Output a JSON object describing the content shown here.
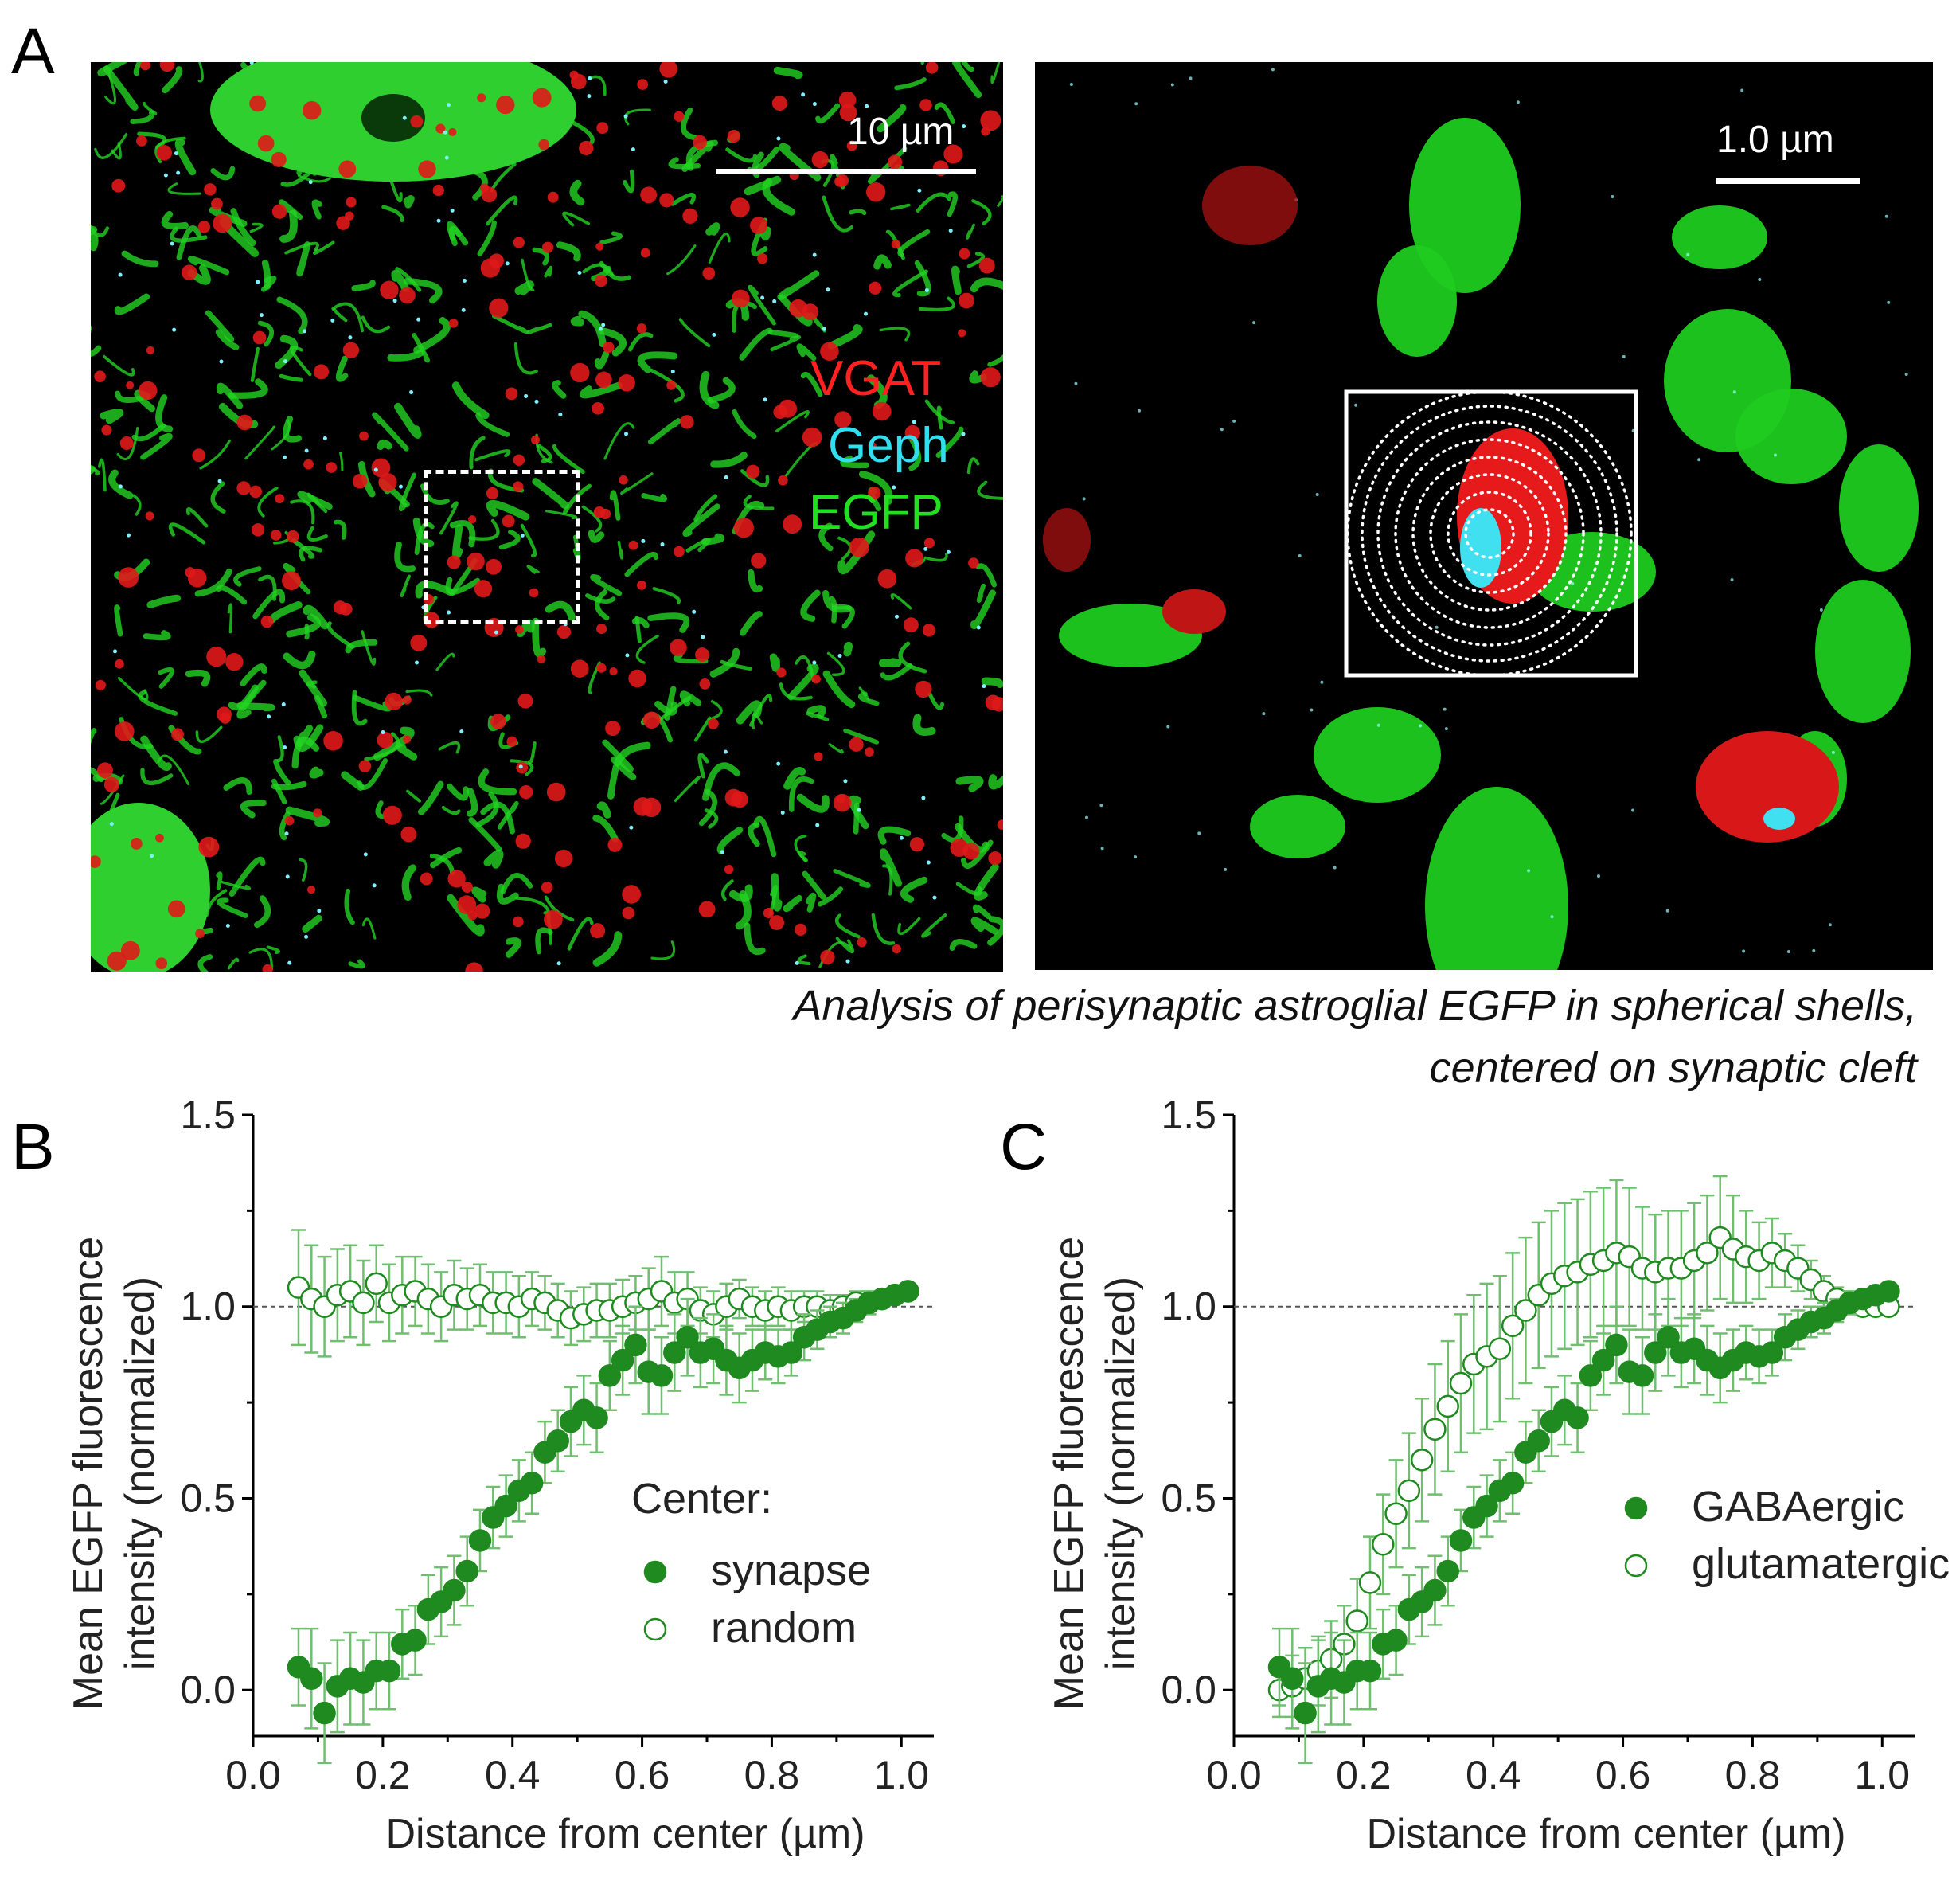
{
  "panel_a": {
    "letter": "A",
    "left_image": {
      "scale_label": "10 µm",
      "channels": [
        {
          "name": "VGAT",
          "color": "#ff2020"
        },
        {
          "name": "Geph",
          "color": "#30e0f0"
        },
        {
          "name": "EGFP",
          "color": "#20e020"
        }
      ]
    },
    "right_image": {
      "scale_label": "1.0 µm"
    },
    "caption_line1": "Analysis of perisynaptic astroglial EGFP in spherical shells,",
    "caption_line2": "centered on synaptic cleft"
  },
  "panel_b": {
    "letter": "B"
  },
  "panel_c": {
    "letter": "C"
  },
  "colors": {
    "series": "#1f8a1f",
    "error": "#6fbf6f",
    "ref_line": "#555555"
  },
  "chart_data": [
    {
      "type": "scatter",
      "panel": "B",
      "xlabel": "Distance from center (µm)",
      "ylabel": "Mean EGFP fluorescence intensity (normalized)",
      "ylabel_line1": "Mean EGFP fluorescence",
      "ylabel_line2": "intensity (normalized)",
      "xlim": [
        0.0,
        1.05
      ],
      "ylim": [
        -0.12,
        1.5
      ],
      "xticks": [
        "0.0",
        "0.2",
        "0.4",
        "0.6",
        "0.8",
        "1.0"
      ],
      "yticks": [
        "0.0",
        "0.5",
        "1.0",
        "1.5"
      ],
      "reference_line": 1.0,
      "legend_title": "Center:",
      "legend_position": "lower-right",
      "x": [
        0.07,
        0.09,
        0.11,
        0.13,
        0.15,
        0.17,
        0.19,
        0.21,
        0.23,
        0.25,
        0.27,
        0.29,
        0.31,
        0.33,
        0.35,
        0.37,
        0.39,
        0.41,
        0.43,
        0.45,
        0.47,
        0.49,
        0.51,
        0.53,
        0.55,
        0.57,
        0.59,
        0.61,
        0.63,
        0.65,
        0.67,
        0.69,
        0.71,
        0.73,
        0.75,
        0.77,
        0.79,
        0.81,
        0.83,
        0.85,
        0.87,
        0.89,
        0.91,
        0.93,
        0.95,
        0.97,
        0.99,
        1.01
      ],
      "series": [
        {
          "name": "synapse",
          "filled": true,
          "values": [
            0.06,
            0.03,
            -0.06,
            0.01,
            0.03,
            0.02,
            0.05,
            0.05,
            0.12,
            0.13,
            0.21,
            0.23,
            0.26,
            0.31,
            0.39,
            0.45,
            0.48,
            0.52,
            0.54,
            0.62,
            0.65,
            0.7,
            0.73,
            0.71,
            0.82,
            0.86,
            0.9,
            0.83,
            0.82,
            0.88,
            0.92,
            0.88,
            0.89,
            0.86,
            0.84,
            0.86,
            0.88,
            0.87,
            0.88,
            0.92,
            0.94,
            0.96,
            0.97,
            0.99,
            1.01,
            1.02,
            1.03,
            1.04
          ],
          "errors": [
            0.1,
            0.13,
            0.13,
            0.12,
            0.12,
            0.11,
            0.1,
            0.1,
            0.09,
            0.09,
            0.09,
            0.09,
            0.09,
            0.09,
            0.08,
            0.08,
            0.08,
            0.08,
            0.08,
            0.08,
            0.08,
            0.09,
            0.09,
            0.09,
            0.09,
            0.09,
            0.1,
            0.11,
            0.1,
            0.1,
            0.1,
            0.09,
            0.09,
            0.09,
            0.09,
            0.08,
            0.07,
            0.07,
            0.06,
            0.06,
            0.05,
            0.04,
            0.04,
            0.03,
            0.03,
            0.02,
            0.02,
            0.01
          ]
        },
        {
          "name": "random",
          "filled": false,
          "values": [
            1.05,
            1.02,
            1.0,
            1.03,
            1.04,
            1.01,
            1.06,
            1.01,
            1.03,
            1.04,
            1.02,
            1.0,
            1.03,
            1.02,
            1.03,
            1.01,
            1.01,
            1.0,
            1.02,
            1.01,
            0.99,
            0.97,
            0.98,
            0.99,
            0.99,
            1.0,
            1.01,
            1.02,
            1.04,
            1.01,
            1.02,
            0.99,
            0.98,
            1.0,
            1.02,
            1.0,
            0.99,
            1.0,
            0.99,
            1.0,
            1.0,
            0.99,
            1.0,
            1.01,
            1.01,
            1.02,
            1.03,
            1.04
          ],
          "errors": [
            0.15,
            0.14,
            0.13,
            0.12,
            0.12,
            0.11,
            0.1,
            0.1,
            0.1,
            0.09,
            0.09,
            0.09,
            0.09,
            0.08,
            0.08,
            0.08,
            0.08,
            0.08,
            0.07,
            0.07,
            0.07,
            0.07,
            0.07,
            0.07,
            0.07,
            0.07,
            0.07,
            0.08,
            0.09,
            0.08,
            0.07,
            0.06,
            0.06,
            0.06,
            0.05,
            0.05,
            0.05,
            0.05,
            0.05,
            0.04,
            0.04,
            0.04,
            0.03,
            0.03,
            0.03,
            0.02,
            0.02,
            0.01
          ]
        }
      ]
    },
    {
      "type": "scatter",
      "panel": "C",
      "xlabel": "Distance from center (µm)",
      "ylabel": "Mean EGFP fluorescence intensity (normalized)",
      "ylabel_line1": "Mean EGFP fluorescence",
      "ylabel_line2": "intensity (normalized)",
      "xlim": [
        0.0,
        1.05
      ],
      "ylim": [
        -0.12,
        1.5
      ],
      "xticks": [
        "0.0",
        "0.2",
        "0.4",
        "0.6",
        "0.8",
        "1.0"
      ],
      "yticks": [
        "0.0",
        "0.5",
        "1.0",
        "1.5"
      ],
      "reference_line": 1.0,
      "legend_title": "",
      "legend_position": "lower-right",
      "x": [
        0.07,
        0.09,
        0.11,
        0.13,
        0.15,
        0.17,
        0.19,
        0.21,
        0.23,
        0.25,
        0.27,
        0.29,
        0.31,
        0.33,
        0.35,
        0.37,
        0.39,
        0.41,
        0.43,
        0.45,
        0.47,
        0.49,
        0.51,
        0.53,
        0.55,
        0.57,
        0.59,
        0.61,
        0.63,
        0.65,
        0.67,
        0.69,
        0.71,
        0.73,
        0.75,
        0.77,
        0.79,
        0.81,
        0.83,
        0.85,
        0.87,
        0.89,
        0.91,
        0.93,
        0.95,
        0.97,
        0.99,
        1.01
      ],
      "series": [
        {
          "name": "GABAergic",
          "filled": true,
          "values": [
            0.06,
            0.03,
            -0.06,
            0.01,
            0.03,
            0.02,
            0.05,
            0.05,
            0.12,
            0.13,
            0.21,
            0.23,
            0.26,
            0.31,
            0.39,
            0.45,
            0.48,
            0.52,
            0.54,
            0.62,
            0.65,
            0.7,
            0.73,
            0.71,
            0.82,
            0.86,
            0.9,
            0.83,
            0.82,
            0.88,
            0.92,
            0.88,
            0.89,
            0.86,
            0.84,
            0.86,
            0.88,
            0.87,
            0.88,
            0.92,
            0.94,
            0.96,
            0.97,
            0.99,
            1.01,
            1.02,
            1.03,
            1.04
          ],
          "errors": [
            0.1,
            0.13,
            0.13,
            0.12,
            0.12,
            0.11,
            0.1,
            0.1,
            0.09,
            0.09,
            0.09,
            0.09,
            0.09,
            0.09,
            0.08,
            0.08,
            0.08,
            0.08,
            0.08,
            0.08,
            0.08,
            0.09,
            0.09,
            0.09,
            0.09,
            0.09,
            0.1,
            0.11,
            0.1,
            0.1,
            0.1,
            0.09,
            0.09,
            0.09,
            0.09,
            0.08,
            0.07,
            0.07,
            0.06,
            0.06,
            0.05,
            0.04,
            0.04,
            0.03,
            0.03,
            0.02,
            0.02,
            0.01
          ]
        },
        {
          "name": "glutamatergic",
          "filled": false,
          "values": [
            0.0,
            0.01,
            0.03,
            0.05,
            0.08,
            0.12,
            0.18,
            0.28,
            0.38,
            0.46,
            0.52,
            0.6,
            0.68,
            0.74,
            0.8,
            0.85,
            0.87,
            0.89,
            0.95,
            0.99,
            1.03,
            1.06,
            1.08,
            1.09,
            1.11,
            1.12,
            1.14,
            1.13,
            1.1,
            1.09,
            1.1,
            1.1,
            1.12,
            1.14,
            1.18,
            1.15,
            1.13,
            1.12,
            1.14,
            1.12,
            1.1,
            1.07,
            1.04,
            1.02,
            1.01,
            1.0,
            1.0,
            1.0
          ],
          "errors": [
            0.07,
            0.08,
            0.08,
            0.09,
            0.1,
            0.1,
            0.11,
            0.12,
            0.13,
            0.14,
            0.15,
            0.16,
            0.17,
            0.17,
            0.18,
            0.18,
            0.19,
            0.19,
            0.19,
            0.19,
            0.19,
            0.19,
            0.19,
            0.19,
            0.19,
            0.19,
            0.19,
            0.18,
            0.16,
            0.15,
            0.15,
            0.15,
            0.15,
            0.15,
            0.16,
            0.14,
            0.12,
            0.1,
            0.09,
            0.07,
            0.06,
            0.05,
            0.04,
            0.03,
            0.03,
            0.02,
            0.02,
            0.01
          ]
        }
      ]
    }
  ]
}
